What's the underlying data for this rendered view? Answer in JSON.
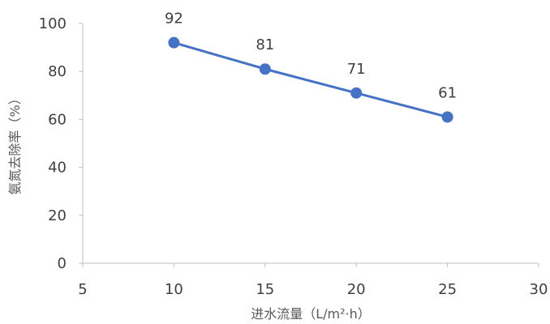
{
  "chart_data": {
    "type": "line",
    "title": "",
    "xlabel": "进水流量（L/m²·h）",
    "ylabel": "氨氮去除率（%）",
    "xlim": [
      5,
      30
    ],
    "ylim": [
      0,
      100
    ],
    "xticks": [
      5,
      10,
      15,
      20,
      25,
      30
    ],
    "yticks": [
      0,
      20,
      40,
      60,
      80,
      100
    ],
    "x": [
      10,
      15,
      20,
      25
    ],
    "series": [
      {
        "values": [
          92,
          81,
          71,
          61
        ],
        "color": "#4472C4"
      }
    ],
    "data_labels": [
      "92",
      "81",
      "71",
      "61"
    ],
    "grid": false,
    "legend": "none",
    "axis_color": "#BFBFBF"
  }
}
